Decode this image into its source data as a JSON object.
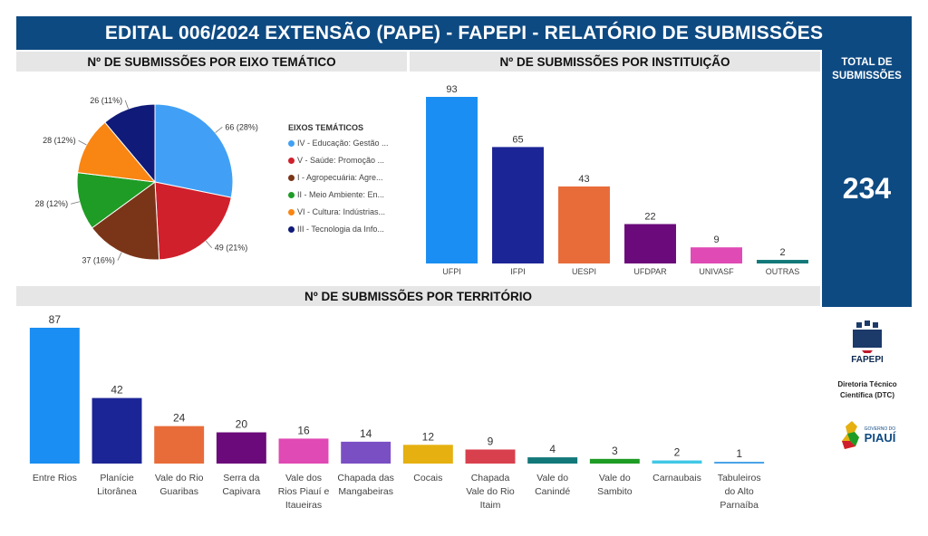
{
  "header": {
    "title": "EDITAL 006/2024 EXTENSÃO (PAPE) - FAPEPI - RELATÓRIO DE SUBMISSÕES"
  },
  "sections": {
    "eixo": "Nº DE SUBMISSÕES POR EIXO TEMÁTICO",
    "instituicao": "Nº DE SUBMISSÕES POR INSTITUIÇÃO",
    "territorio": "Nº DE SUBMISSÕES POR TERRITÓRIO"
  },
  "total": {
    "label": "TOTAL DE SUBMISSÕES",
    "value": "234"
  },
  "legend": {
    "title": "EIXOS TEMÁTICOS",
    "items": [
      "IV - Educação: Gestão ...",
      "V - Saúde: Promoção ...",
      "I - Agropecuária: Agre...",
      "II - Meio Ambiente: En...",
      "VI - Cultura: Indústrias...",
      "III - Tecnologia da Info..."
    ]
  },
  "logos": {
    "fapepi": "FAPEPI",
    "dtc": "Diretoria Técnico Científica (DTC)",
    "gov_line": "GOVERNO DO",
    "gov": "PIAUÍ"
  },
  "chart_data": [
    {
      "type": "pie",
      "title": "Nº DE SUBMISSÕES POR EIXO TEMÁTICO",
      "legend_title": "EIXOS TEMÁTICOS",
      "categories": [
        "IV - Educação: Gestão ...",
        "V - Saúde: Promoção ...",
        "I - Agropecuária: Agre...",
        "II - Meio Ambiente: En...",
        "VI - Cultura: Indústrias...",
        "III - Tecnologia da Info..."
      ],
      "values": [
        66,
        49,
        37,
        28,
        28,
        26
      ],
      "labels": [
        "66 (28%)",
        "49 (21%)",
        "37 (16%)",
        "28 (12%)",
        "28 (12%)",
        "26 (11%)"
      ],
      "colors": [
        "#41a0f5",
        "#d0202c",
        "#7a3518",
        "#1f9c26",
        "#f98512",
        "#101a78"
      ],
      "legend_position": "right"
    },
    {
      "type": "bar",
      "title": "Nº DE SUBMISSÕES POR INSTITUIÇÃO",
      "categories": [
        "UFPI",
        "IFPI",
        "UESPI",
        "UFDPAR",
        "UNIVASF",
        "OUTRAS"
      ],
      "values": [
        93,
        65,
        43,
        22,
        9,
        2
      ],
      "colors": [
        "#1a8ef2",
        "#1c2596",
        "#e86c3a",
        "#6b0a7a",
        "#e04ab4",
        "#137879"
      ],
      "ylim": [
        0,
        93
      ],
      "grid": false
    },
    {
      "type": "bar",
      "title": "Nº DE SUBMISSÕES POR TERRITÓRIO",
      "categories": [
        "Entre Rios",
        "Planície Litorânea",
        "Vale do Rio Guaribas",
        "Serra da Capivara",
        "Vale dos Rios Piauí e Itaueiras",
        "Chapada das Mangabeiras",
        "Cocais",
        "Chapada Vale do Rio Itaim",
        "Vale do Canindé",
        "Vale do Sambito",
        "Carnaubais",
        "Tabuleiros do Alto Parnaíba"
      ],
      "category_lines": [
        [
          "Entre Rios"
        ],
        [
          "Planície",
          "Litorânea"
        ],
        [
          "Vale do Rio",
          "Guaribas"
        ],
        [
          "Serra da",
          "Capivara"
        ],
        [
          "Vale dos",
          "Rios Piauí e",
          "Itaueiras"
        ],
        [
          "Chapada das",
          "Mangabeiras"
        ],
        [
          "Cocais"
        ],
        [
          "Chapada",
          "Vale do Rio",
          "Itaim"
        ],
        [
          "Vale do",
          "Canindé"
        ],
        [
          "Vale do",
          "Sambito"
        ],
        [
          "Carnaubais"
        ],
        [
          "Tabuleiros",
          "do Alto",
          "Parnaíba"
        ]
      ],
      "values": [
        87,
        42,
        24,
        20,
        16,
        14,
        12,
        9,
        4,
        3,
        2,
        1
      ],
      "colors": [
        "#1a8ef2",
        "#1c2596",
        "#e86c3a",
        "#6b0a7a",
        "#e04ab4",
        "#7b4fc4",
        "#e5b010",
        "#d9404e",
        "#137879",
        "#1f9c26",
        "#41c8e6",
        "#4aa3e8"
      ],
      "ylim": [
        0,
        87
      ],
      "grid": false
    }
  ]
}
